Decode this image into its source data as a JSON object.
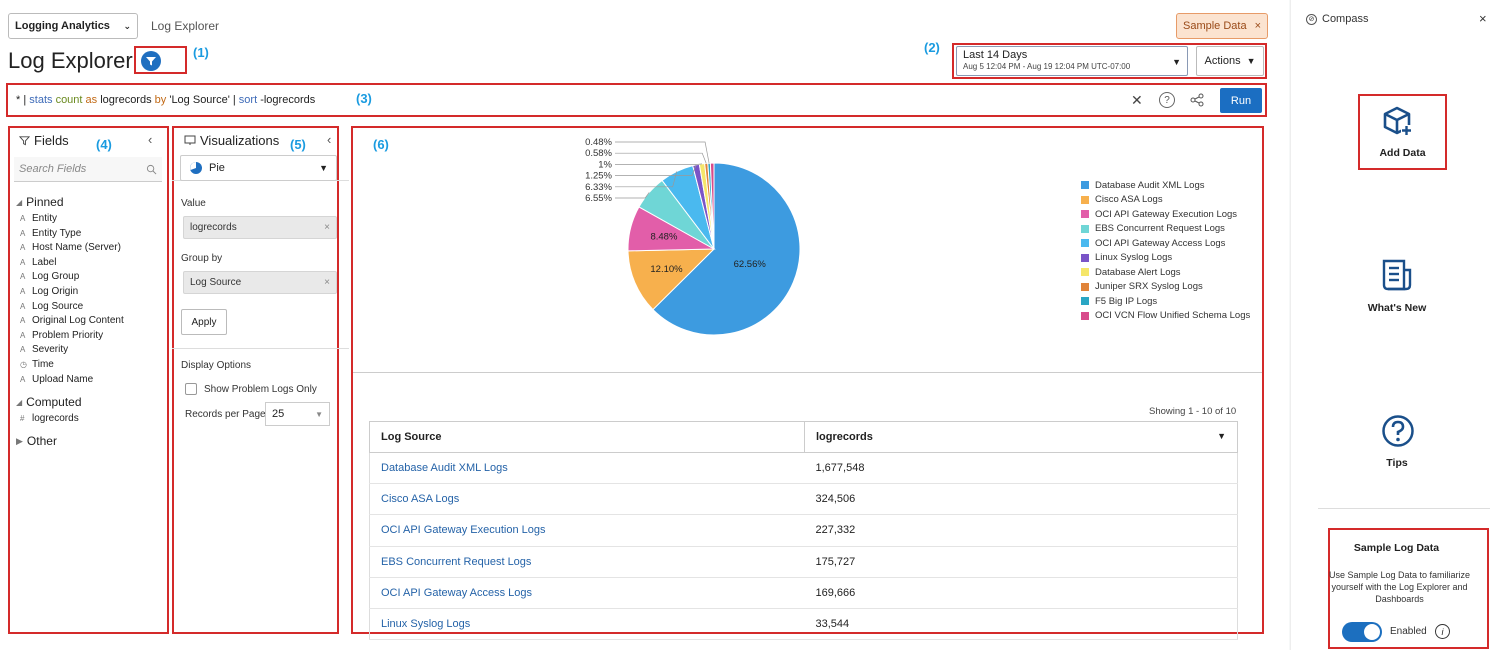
{
  "header": {
    "app_select": "Logging Analytics",
    "breadcrumb": "Log Explorer",
    "title": "Log Explorer",
    "sample_data": "Sample Data",
    "time_range": "Last 14 Days",
    "time_detail": "Aug 5 12:04 PM - Aug 19 12:04 PM UTC-07:00",
    "actions": "Actions"
  },
  "callouts": [
    "(1)",
    "(2)",
    "(3)",
    "(4)",
    "(5)",
    "(6)"
  ],
  "query": {
    "star": "* |",
    "stats": "stats",
    "count": "count",
    "as": "as",
    "logrecords": "logrecords",
    "by": "by",
    "field": "'Log Source'",
    "pipe": "|",
    "sort": "sort",
    "sortfield": "-logrecords",
    "run": "Run"
  },
  "fields_panel": {
    "title": "Fields",
    "search_placeholder": "Search Fields",
    "pinned_label": "Pinned",
    "pinned": [
      {
        "type": "A",
        "name": "Entity"
      },
      {
        "type": "A",
        "name": "Entity Type"
      },
      {
        "type": "A",
        "name": "Host Name (Server)"
      },
      {
        "type": "A",
        "name": "Label"
      },
      {
        "type": "A",
        "name": "Log Group"
      },
      {
        "type": "A",
        "name": "Log Origin"
      },
      {
        "type": "A",
        "name": "Log Source"
      },
      {
        "type": "A",
        "name": "Original Log Content"
      },
      {
        "type": "A",
        "name": "Problem Priority"
      },
      {
        "type": "A",
        "name": "Severity"
      },
      {
        "type": "◷",
        "name": "Time"
      },
      {
        "type": "A",
        "name": "Upload Name"
      }
    ],
    "computed_label": "Computed",
    "computed": [
      {
        "type": "#",
        "name": "logrecords"
      }
    ],
    "other_label": "Other"
  },
  "viz_panel": {
    "title": "Visualizations",
    "type": "Pie",
    "value_label": "Value",
    "value": "logrecords",
    "group_by_label": "Group by",
    "group_by": "Log Source",
    "apply": "Apply",
    "display_options": "Display Options",
    "show_problem_logs": "Show Problem Logs Only",
    "records_per_page_label": "Records per Page",
    "records_per_page": "25"
  },
  "chart_data": {
    "type": "pie",
    "categories": [
      "Database Audit XML Logs",
      "Cisco ASA Logs",
      "OCI API Gateway Execution Logs",
      "EBS Concurrent Request Logs",
      "OCI API Gateway Access Logs",
      "Linux Syslog Logs",
      "Database Alert Logs",
      "Juniper SRX Syslog Logs",
      "F5 Big IP Logs",
      "OCI VCN Flow Unified Schema Logs"
    ],
    "values": [
      62.56,
      12.1,
      8.48,
      6.55,
      6.33,
      1.25,
      1,
      0.58,
      0.48,
      0.67
    ],
    "inside_labels": [
      "62.56%",
      "12.10%",
      "8.48%"
    ],
    "outside_labels": [
      "0.48%",
      "0.58%",
      "1%",
      "1.25%",
      "6.33%",
      "6.55%"
    ],
    "colors": [
      "#3d9be0",
      "#f7b04d",
      "#e25ea9",
      "#6fd6d6",
      "#4ab9ef",
      "#7a54c7",
      "#f5e66a",
      "#e0843a",
      "#2aa6c4",
      "#d84b8b"
    ],
    "legend_position": "right"
  },
  "table": {
    "showing": "Showing 1 - 10 of 10",
    "headers": [
      "Log Source",
      "logrecords"
    ],
    "rows": [
      [
        "Database Audit XML Logs",
        "1,677,548"
      ],
      [
        "Cisco ASA Logs",
        "324,506"
      ],
      [
        "OCI API Gateway Execution Logs",
        "227,332"
      ],
      [
        "EBS Concurrent Request Logs",
        "175,727"
      ],
      [
        "OCI API Gateway Access Logs",
        "169,666"
      ],
      [
        "Linux Syslog Logs",
        "33,544"
      ]
    ]
  },
  "compass": {
    "title": "Compass",
    "add_data": "Add Data",
    "whats_new": "What's New",
    "tips": "Tips",
    "sample_title": "Sample Log Data",
    "sample_desc": "Use Sample Log Data to familiarize yourself with the Log Explorer and Dashboards",
    "toggle_label": "Enabled"
  }
}
